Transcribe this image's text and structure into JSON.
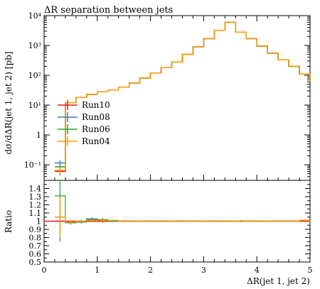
{
  "chart_data": [
    {
      "type": "line",
      "title": "ΔR separation between jets",
      "ylabel": "dσ/dΔR(jet 1, jet 2) [pb]",
      "xlabel": "",
      "xlim": [
        0,
        5
      ],
      "ylim": [
        0.03,
        10000
      ],
      "yscale": "log",
      "legend": {
        "position": "center-left",
        "entries": [
          "Run10",
          "Run08",
          "Run06",
          "Run04"
        ]
      },
      "x_edges": [
        0.2,
        0.4,
        0.6,
        0.8,
        1.0,
        1.2,
        1.4,
        1.6,
        1.8,
        2.0,
        2.2,
        2.4,
        2.6,
        2.8,
        3.0,
        3.2,
        3.4,
        3.6,
        3.8,
        4.0,
        4.2,
        4.4,
        4.6,
        4.8,
        5.0
      ],
      "series": [
        {
          "name": "Run10",
          "color": "#e41a1c",
          "values": [
            0.06,
            12,
            18,
            23,
            28,
            32,
            40,
            55,
            80,
            120,
            180,
            280,
            500,
            900,
            1700,
            3200,
            6000,
            2800,
            1700,
            950,
            550,
            330,
            200,
            110,
            60
          ],
          "ratio_errors": [
            0.12,
            0.03,
            0.02,
            0.02,
            0.02,
            0.01,
            0.01,
            0.01,
            0.01,
            0.01,
            0.01,
            0.01,
            0.01,
            0.01,
            0.01,
            0.01,
            0.01,
            0.01,
            0.01,
            0.01,
            0.01,
            0.01,
            0.01,
            0.01,
            0.01
          ]
        },
        {
          "name": "Run08",
          "color": "#377eb8",
          "values": [
            0.115,
            12,
            18,
            23,
            28,
            32,
            40,
            55,
            80,
            120,
            180,
            280,
            500,
            900,
            1700,
            3200,
            6000,
            2800,
            1700,
            950,
            550,
            330,
            200,
            110,
            60
          ]
        },
        {
          "name": "Run06",
          "color": "#2ca02c",
          "values": [
            0.085,
            12,
            18,
            23,
            28,
            32,
            40,
            55,
            80,
            120,
            180,
            280,
            500,
            900,
            1700,
            3200,
            6000,
            2800,
            1700,
            950,
            550,
            330,
            200,
            110,
            60
          ]
        },
        {
          "name": "Run04",
          "color": "#ff9900",
          "values": [
            0.065,
            12,
            18,
            23,
            28,
            32,
            40,
            55,
            80,
            120,
            180,
            280,
            500,
            900,
            1700,
            3200,
            6000,
            2800,
            1700,
            950,
            550,
            330,
            200,
            110,
            60
          ]
        }
      ]
    },
    {
      "type": "line",
      "title": "",
      "ylabel": "Ratio",
      "xlabel": "ΔR(jet 1, jet 2)",
      "xlim": [
        0,
        5
      ],
      "ylim": [
        0.5,
        1.5
      ],
      "reference": 1.0,
      "x_edges": [
        0.2,
        0.4,
        0.6,
        0.8,
        1.0,
        1.2,
        1.4,
        1.6,
        1.8,
        2.0,
        2.2,
        2.4,
        2.6,
        2.8,
        3.0,
        3.2,
        3.4,
        3.6,
        3.8,
        4.0,
        4.2,
        4.4,
        4.6,
        4.8,
        5.0
      ],
      "series": [
        {
          "name": "Run10",
          "color": "#e41a1c",
          "values": [
            1.0,
            0.99,
            0.99,
            1.01,
            1.0,
            1.0,
            1.0,
            1.0,
            1.0,
            1.0,
            1.0,
            1.0,
            1.0,
            1.0,
            1.0,
            1.0,
            1.0,
            1.0,
            1.0,
            1.0,
            1.0,
            1.0,
            1.0,
            1.0,
            1.0
          ],
          "errors": [
            0.23,
            0.02,
            0.02,
            0.02,
            0.02,
            0.01,
            0.01,
            0.01,
            0.01,
            0.01,
            0.01,
            0.01,
            0.01,
            0.01,
            0.01,
            0.01,
            0.01,
            0.01,
            0.01,
            0.01,
            0.01,
            0.01,
            0.01,
            0.01,
            0.01
          ]
        },
        {
          "name": "Run08",
          "color": "#377eb8",
          "values": [
            1.05,
            0.98,
            1.0,
            1.03,
            1.01,
            1.0,
            1.0,
            1.0,
            1.0,
            1.0,
            1.0,
            1.0,
            1.0,
            1.0,
            1.0,
            1.0,
            1.0,
            1.0,
            1.0,
            1.0,
            1.0,
            1.0,
            1.0,
            1.01,
            1.0
          ],
          "errors": [
            0.3,
            0.02,
            0.02,
            0.02,
            0.02,
            0.01,
            0.01,
            0.01,
            0.01,
            0.01,
            0.01,
            0.01,
            0.01,
            0.01,
            0.01,
            0.01,
            0.01,
            0.01,
            0.01,
            0.01,
            0.01,
            0.01,
            0.01,
            0.01,
            0.01
          ]
        },
        {
          "name": "Run06",
          "color": "#2ca02c",
          "values": [
            1.31,
            0.98,
            0.99,
            1.02,
            1.02,
            1.0,
            1.0,
            1.0,
            1.0,
            1.0,
            1.0,
            1.0,
            1.0,
            1.0,
            1.0,
            1.0,
            1.0,
            1.0,
            1.0,
            1.0,
            1.0,
            1.0,
            1.0,
            1.01,
            1.0
          ],
          "errors": [
            0.2,
            0.02,
            0.02,
            0.02,
            0.02,
            0.01,
            0.01,
            0.01,
            0.01,
            0.01,
            0.01,
            0.01,
            0.01,
            0.01,
            0.01,
            0.01,
            0.01,
            0.01,
            0.01,
            0.01,
            0.01,
            0.01,
            0.01,
            0.01,
            0.01
          ]
        },
        {
          "name": "Run04",
          "color": "#ff9900",
          "values": [
            1.05,
            0.99,
            1.0,
            1.01,
            1.01,
            1.01,
            1.0,
            1.0,
            1.0,
            1.0,
            1.0,
            1.0,
            1.0,
            1.0,
            1.0,
            1.0,
            1.0,
            1.0,
            1.0,
            1.0,
            1.0,
            1.0,
            1.0,
            1.01,
            1.0
          ],
          "errors": [
            0.25,
            0.02,
            0.02,
            0.02,
            0.02,
            0.01,
            0.01,
            0.01,
            0.01,
            0.01,
            0.01,
            0.01,
            0.01,
            0.01,
            0.01,
            0.01,
            0.01,
            0.01,
            0.01,
            0.01,
            0.01,
            0.01,
            0.01,
            0.01,
            0.01
          ]
        }
      ]
    }
  ],
  "labels": {
    "top_yticks": [
      "10⁻¹",
      "1",
      "10¹",
      "10²",
      "10³",
      "10⁴"
    ],
    "ratio_yticks": [
      "0.5",
      "0.6",
      "0.7",
      "0.8",
      "0.9",
      "1",
      "1.1",
      "1.2",
      "1.3",
      "1.4"
    ],
    "xticks": [
      "0",
      "1",
      "2",
      "3",
      "4",
      "5"
    ]
  }
}
